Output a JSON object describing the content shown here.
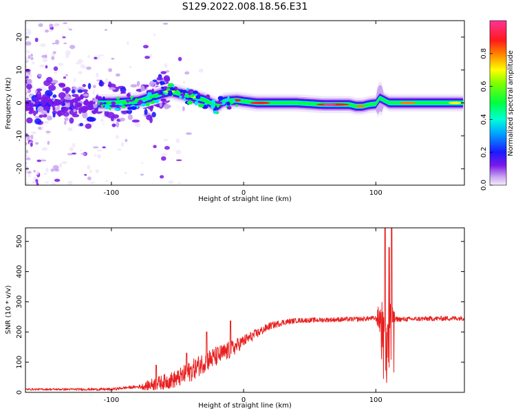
{
  "title": "S129.2022.008.18.56.E31",
  "chart_data": [
    {
      "type": "heatmap",
      "xlabel": "Height of straight line (km)",
      "ylabel": "Frequency (Hz)",
      "xlim": [
        -165,
        167
      ],
      "ylim": [
        -25,
        25
      ],
      "xticks": [
        -100,
        0,
        100
      ],
      "yticks": [
        -20,
        -10,
        0,
        10,
        20
      ],
      "colorbar": {
        "label": "Normalized spectral amplitude",
        "range": [
          0,
          1
        ],
        "ticks": [
          "0.0",
          "0.2",
          "0.4",
          "0.6",
          "0.8"
        ]
      },
      "ridge": {
        "description": "frequency center of the main spectral ridge vs height",
        "x": [
          -165,
          -120,
          -100,
          -80,
          -60,
          -55,
          -45,
          -30,
          -20,
          -15,
          -5,
          0,
          10,
          40,
          60,
          80,
          85,
          90,
          95,
          100,
          103,
          110,
          130,
          167
        ],
        "y": [
          0,
          0,
          0,
          0.5,
          3,
          3.5,
          2.5,
          1,
          -1,
          0.5,
          0.8,
          0.5,
          0,
          0,
          -0.5,
          -0.5,
          -1,
          -1,
          -0.5,
          -0.3,
          1.5,
          0,
          0,
          0
        ]
      },
      "color_series": [
        "#f0e8fb",
        "#c9a6f0",
        "#7a1ae8",
        "#1a1aff",
        "#00e5ff",
        "#00ff40",
        "#ffff00",
        "#ff8000",
        "#ff1a1a",
        "#ff3399"
      ]
    },
    {
      "type": "line",
      "xlabel": "Height of straight line (km)",
      "ylabel": "SNR (10 * v/v)",
      "xlim": [
        -165,
        167
      ],
      "ylim": [
        0,
        545
      ],
      "xticks": [
        -100,
        0,
        100
      ],
      "yticks": [
        0,
        100,
        200,
        300,
        400,
        500
      ],
      "color": "#e8201f",
      "envelope": {
        "x": [
          -165,
          -100,
          -90,
          -75,
          -70,
          -50,
          -40,
          -30,
          -20,
          -10,
          0,
          10,
          20,
          30,
          40,
          60,
          80,
          90,
          95,
          100,
          112,
          120,
          140,
          167
        ],
        "y": [
          10,
          10,
          15,
          20,
          25,
          45,
          70,
          100,
          120,
          140,
          170,
          195,
          220,
          232,
          238,
          240,
          242,
          243,
          245,
          245,
          243,
          242,
          244,
          246
        ]
      },
      "noise_amplitude": {
        "x": [
          -165,
          -80,
          -70,
          -40,
          -25,
          -10,
          0,
          20,
          40,
          100,
          103,
          112,
          115,
          167
        ],
        "y": [
          3,
          5,
          20,
          35,
          35,
          30,
          20,
          12,
          8,
          8,
          60,
          60,
          8,
          8
        ]
      },
      "spikes": [
        {
          "x": -66,
          "y": 90
        },
        {
          "x": -43,
          "y": 130
        },
        {
          "x": -28,
          "y": 200
        },
        {
          "x": -10,
          "y": 237
        },
        {
          "x": 107,
          "y": 550
        },
        {
          "x": 110,
          "y": 480
        },
        {
          "x": 112,
          "y": 545
        }
      ]
    }
  ]
}
